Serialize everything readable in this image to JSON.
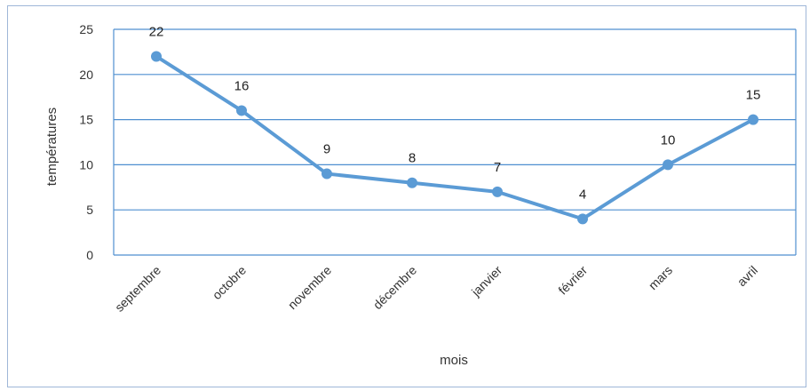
{
  "chart_data": {
    "type": "line",
    "categories": [
      "septembre",
      "octobre",
      "novembre",
      "décembre",
      "janvier",
      "février",
      "mars",
      "avril"
    ],
    "series": [
      {
        "values": [
          22,
          16,
          9,
          8,
          7,
          4,
          10,
          15
        ],
        "color": "#5b9bd5"
      }
    ],
    "data_labels": true,
    "xlabel": "mois",
    "ylabel": "températures",
    "ylim": [
      0,
      25
    ],
    "yticks": [
      0,
      5,
      10,
      15,
      20,
      25
    ],
    "grid": "horizontal",
    "gridColor": "#4f8fd0",
    "plotBorderColor": "#4f8fd0",
    "legend": "none"
  }
}
